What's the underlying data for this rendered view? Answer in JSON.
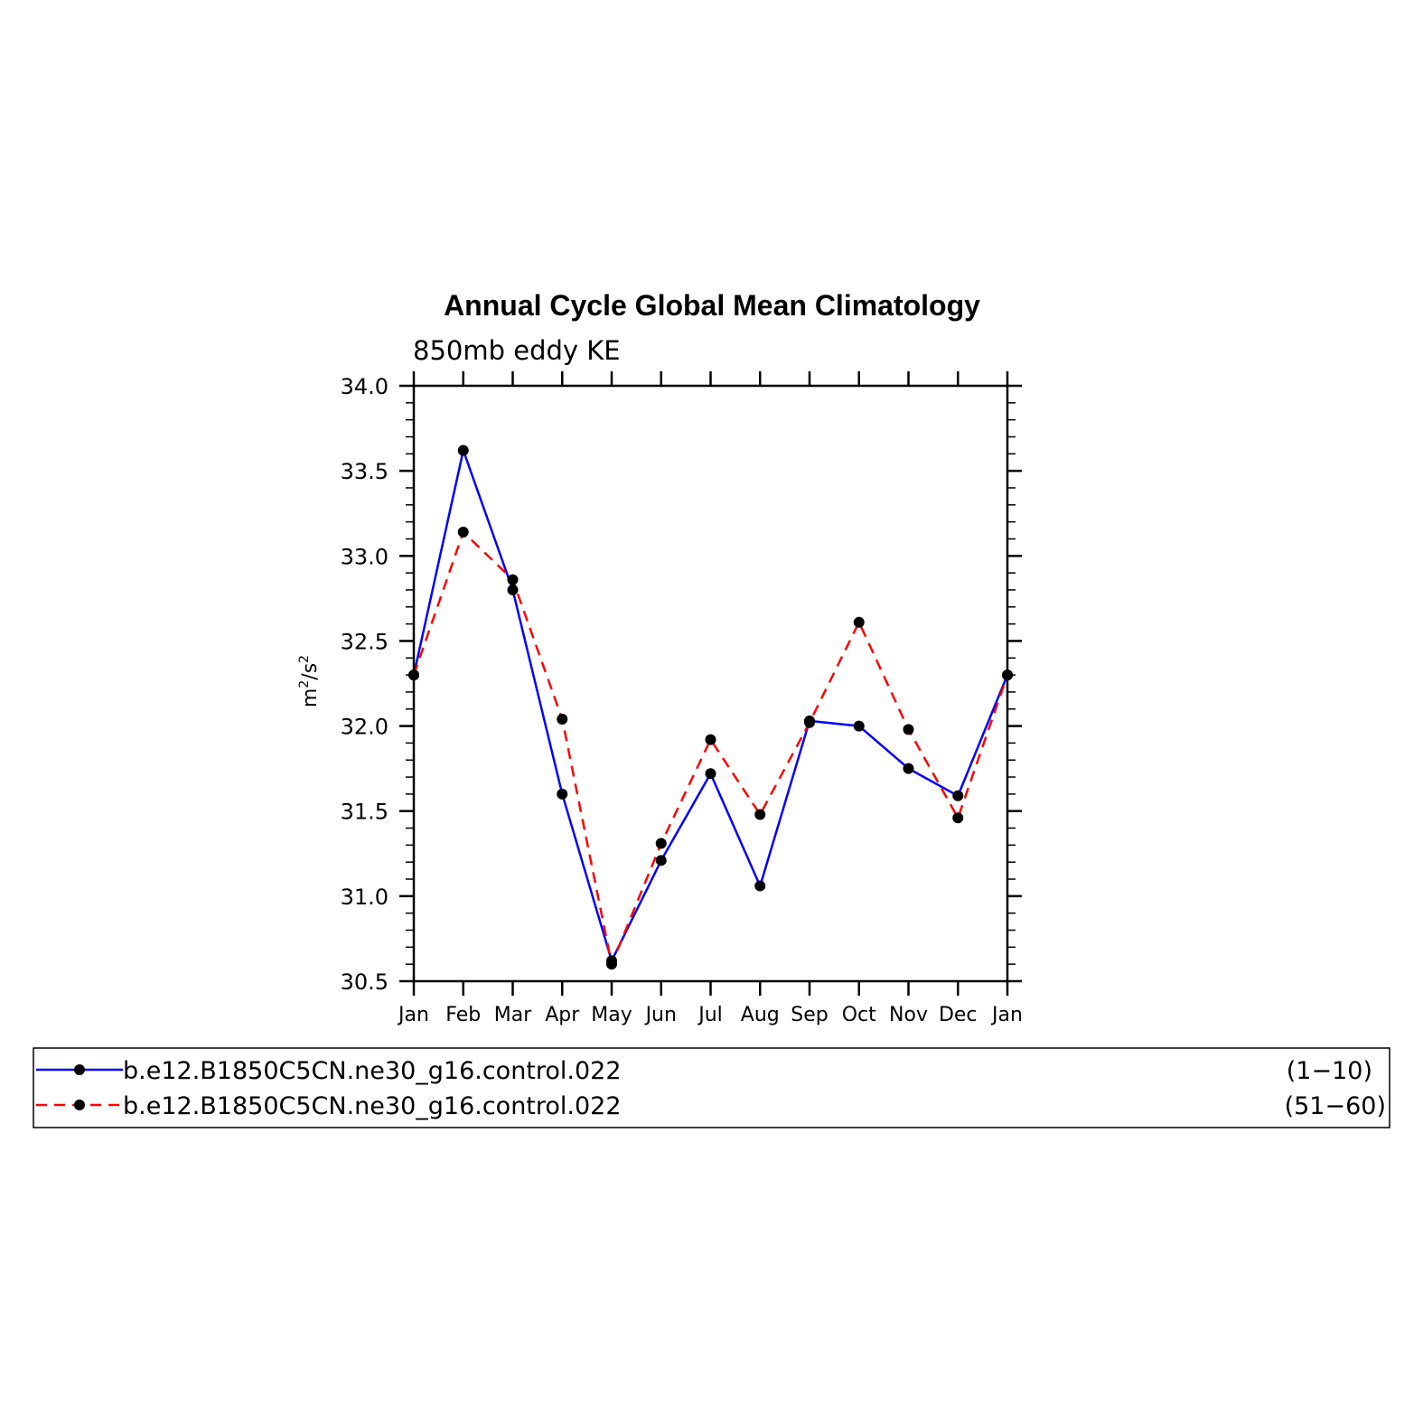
{
  "chart_data": {
    "type": "line",
    "title": "Annual Cycle Global Mean Climatology",
    "subtitle": "850mb eddy KE",
    "xlabel": "",
    "ylabel": "m²/s²",
    "ylabel_base": "m",
    "ylabel_sup1": "2",
    "ylabel_mid": "/s",
    "ylabel_sup2": "2",
    "categories": [
      "Jan",
      "Feb",
      "Mar",
      "Apr",
      "May",
      "Jun",
      "Jul",
      "Aug",
      "Sep",
      "Oct",
      "Nov",
      "Dec",
      "Jan"
    ],
    "ylim": [
      30.5,
      34.0
    ],
    "yticks": [
      "30.5",
      "31.0",
      "31.5",
      "32.0",
      "32.5",
      "33.0",
      "33.5",
      "34.0"
    ],
    "grid": false,
    "legend_position": "bottom",
    "series": [
      {
        "name": "b.e12.B1850C5CN.ne30_g16.control.022",
        "years": "(1−10)",
        "color": "#0000ff",
        "dash": "solid",
        "values": [
          32.3,
          33.62,
          32.8,
          31.6,
          30.62,
          31.21,
          31.72,
          31.06,
          32.03,
          32.0,
          31.75,
          31.59,
          32.3
        ]
      },
      {
        "name": "b.e12.B1850C5CN.ne30_g16.control.022",
        "years": "(51−60)",
        "color": "#ff0000",
        "dash": "dashed",
        "values": [
          32.3,
          33.14,
          32.86,
          32.04,
          30.6,
          31.31,
          31.92,
          31.48,
          32.02,
          32.61,
          31.98,
          31.46,
          32.3
        ]
      }
    ]
  }
}
